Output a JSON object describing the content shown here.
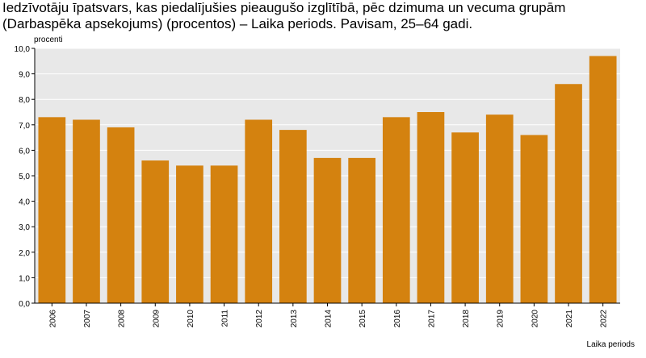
{
  "title": {
    "line1": "Iedzīvotāju īpatsvars, kas piedalījušies pieaugušo izglītībā, pēc dzimuma un vecuma grupām",
    "line2": "(Darbaspēka  apsekojums)  (procentos) – Laika  periods.  Pavisam,  25–64  gadi."
  },
  "chart_data": {
    "type": "bar",
    "ylabel": "procenti",
    "xlabel": "Laika periods",
    "ylim": [
      0,
      10
    ],
    "yticks": [
      "0,0",
      "1,0",
      "2,0",
      "3,0",
      "4,0",
      "5,0",
      "6,0",
      "7,0",
      "8,0",
      "9,0",
      "10,0"
    ],
    "categories": [
      "2006",
      "2007",
      "2008",
      "2009",
      "2010",
      "2011",
      "2012",
      "2013",
      "2014",
      "2015",
      "2016",
      "2017",
      "2018",
      "2019",
      "2020",
      "2021",
      "2022"
    ],
    "values": [
      7.3,
      7.2,
      6.9,
      5.6,
      5.4,
      5.4,
      7.2,
      6.8,
      5.7,
      5.7,
      7.3,
      7.5,
      6.7,
      7.4,
      6.6,
      8.6,
      9.7
    ],
    "grid": true,
    "bar_color": "#d4820f",
    "plot_background": "#e8e8e8"
  }
}
